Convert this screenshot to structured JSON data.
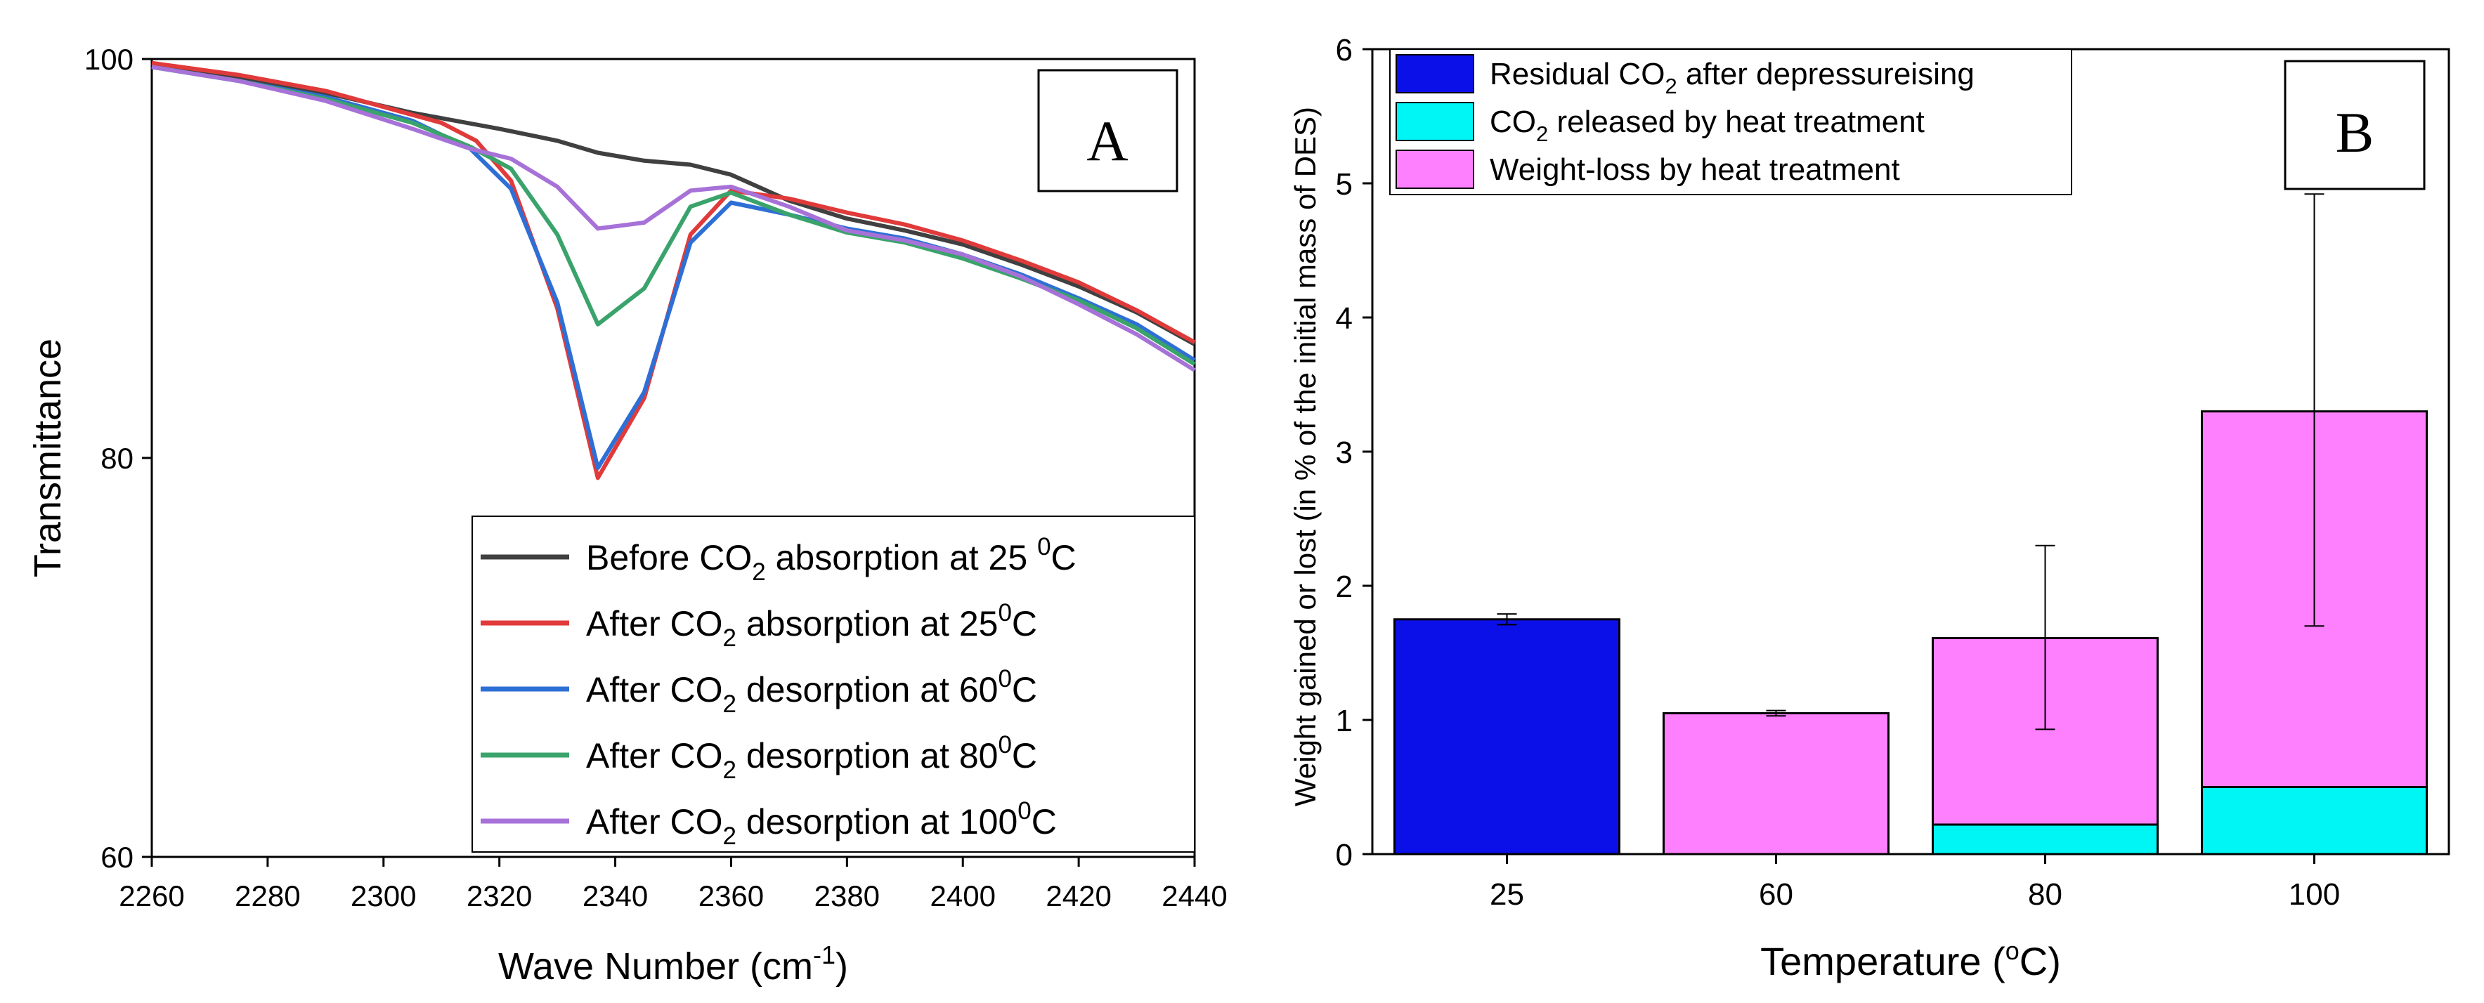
{
  "chart_data": [
    {
      "panel": "A",
      "type": "line",
      "panel_label": "A",
      "xlabel": "Wave Number (cm",
      "xlabel_sup": "-1",
      "xlabel_end": ")",
      "ylabel": "Transmittance",
      "xlim": [
        2260,
        2440
      ],
      "ylim": [
        60,
        100
      ],
      "xticks": [
        2260,
        2280,
        2300,
        2320,
        2340,
        2360,
        2380,
        2400,
        2420,
        2440
      ],
      "yticks": [
        60,
        80,
        100
      ],
      "legend_position": "bottom-right",
      "series": [
        {
          "name": "Before CO2 absorption at 25 0C",
          "color": "#404040",
          "legend": {
            "a": "Before CO",
            "sub": "2",
            "b": " absorption at 25 ",
            "sup": "0",
            "c": "C"
          },
          "x": [
            2260,
            2275,
            2290,
            2305,
            2320,
            2330,
            2337,
            2345,
            2353,
            2360,
            2370,
            2380,
            2390,
            2400,
            2410,
            2420,
            2430,
            2440
          ],
          "y": [
            99.7,
            99.1,
            98.3,
            97.3,
            96.5,
            95.9,
            95.3,
            94.9,
            94.7,
            94.2,
            92.9,
            92.0,
            91.4,
            90.7,
            89.7,
            88.6,
            87.3,
            85.7
          ]
        },
        {
          "name": "After CO2 absorption at 25 0C",
          "color": "#e03a3a",
          "legend": {
            "a": "After CO",
            "sub": "2",
            "b": " absorption at 25",
            "sup": "0",
            "c": "C"
          },
          "x": [
            2260,
            2275,
            2290,
            2300,
            2310,
            2316,
            2322,
            2330,
            2337,
            2345,
            2353,
            2360,
            2370,
            2380,
            2390,
            2400,
            2410,
            2420,
            2430,
            2440
          ],
          "y": [
            99.8,
            99.2,
            98.4,
            97.6,
            96.8,
            95.9,
            93.9,
            87.5,
            79.0,
            83.0,
            91.2,
            93.4,
            93.0,
            92.3,
            91.7,
            90.9,
            89.9,
            88.8,
            87.4,
            85.8
          ]
        },
        {
          "name": "After CO2 desorption at 60 0C",
          "color": "#2e6fd6",
          "legend": {
            "a": "After CO",
            "sub": "2",
            "b": " desorption at 60",
            "sup": "0",
            "c": "C"
          },
          "x": [
            2260,
            2275,
            2290,
            2305,
            2315,
            2322,
            2330,
            2337,
            2345,
            2353,
            2360,
            2370,
            2380,
            2390,
            2400,
            2410,
            2420,
            2430,
            2440
          ],
          "y": [
            99.6,
            98.9,
            98.1,
            96.9,
            95.5,
            93.5,
            87.8,
            79.5,
            83.3,
            90.8,
            92.8,
            92.2,
            91.5,
            91.0,
            90.2,
            89.2,
            88.0,
            86.7,
            84.9
          ]
        },
        {
          "name": "After CO2 desorption at 80 0C",
          "color": "#3aa36b",
          "legend": {
            "a": "After CO",
            "sub": "2",
            "b": " desorption at 80",
            "sup": "0",
            "c": "C"
          },
          "x": [
            2260,
            2275,
            2290,
            2305,
            2315,
            2322,
            2330,
            2337,
            2345,
            2353,
            2360,
            2370,
            2380,
            2390,
            2400,
            2410,
            2420,
            2430,
            2440
          ],
          "y": [
            99.6,
            98.9,
            98.0,
            96.8,
            95.6,
            94.5,
            91.2,
            86.7,
            88.5,
            92.6,
            93.3,
            92.2,
            91.3,
            90.8,
            90.0,
            89.0,
            87.9,
            86.5,
            84.7
          ]
        },
        {
          "name": "After CO2 desorption at 100 0C",
          "color": "#a772d8",
          "legend": {
            "a": "After CO",
            "sub": "2",
            "b": " desorption at 100",
            "sup": "0",
            "c": "C"
          },
          "x": [
            2260,
            2275,
            2290,
            2305,
            2315,
            2322,
            2330,
            2337,
            2345,
            2353,
            2360,
            2370,
            2380,
            2390,
            2400,
            2410,
            2420,
            2430,
            2440
          ],
          "y": [
            99.6,
            98.9,
            97.9,
            96.5,
            95.5,
            95.0,
            93.6,
            91.5,
            91.8,
            93.4,
            93.6,
            92.6,
            91.4,
            90.9,
            90.2,
            89.1,
            87.7,
            86.2,
            84.4
          ]
        }
      ]
    },
    {
      "panel": "B",
      "type": "bar",
      "stacked": true,
      "panel_label": "B",
      "xlabel": "Temperature (",
      "xlabel_sup": "o",
      "xlabel_end": "C)",
      "ylabel": "Weight gained or lost (in % of the initial mass of DES)",
      "categories": [
        "25",
        "60",
        "80",
        "100"
      ],
      "ylim": [
        0,
        6
      ],
      "yticks": [
        0,
        1,
        2,
        3,
        4,
        5,
        6
      ],
      "legend_position": "top-left",
      "series": [
        {
          "name": "Residual CO2 after depressureising",
          "color": "#0b10e8",
          "legend": {
            "a": "Residual CO",
            "sub": "2",
            "b": " after depressureising"
          },
          "values": [
            1.75,
            0,
            0,
            0
          ]
        },
        {
          "name": "CO2 released by heat treatment",
          "color": "#00f5f5",
          "legend": {
            "a": "CO",
            "sub": "2",
            "b": " released by heat treatment"
          },
          "values": [
            0,
            0,
            0.22,
            0.5
          ]
        },
        {
          "name": "Weight-loss by heat treatment",
          "color": "#ff80ff",
          "legend": {
            "a": "Weight-loss by heat treatment",
            "sub": "",
            "b": ""
          },
          "values": [
            0,
            1.05,
            1.39,
            2.8
          ]
        }
      ],
      "error_bars": [
        {
          "category": "25",
          "center": 1.75,
          "low": 1.71,
          "high": 1.79
        },
        {
          "category": "60",
          "center": 1.05,
          "low": 1.03,
          "high": 1.07
        },
        {
          "category": "80",
          "center": 1.61,
          "low": 0.93,
          "high": 2.3
        },
        {
          "category": "100",
          "center": 3.3,
          "low": 1.7,
          "high": 4.92
        }
      ]
    }
  ]
}
